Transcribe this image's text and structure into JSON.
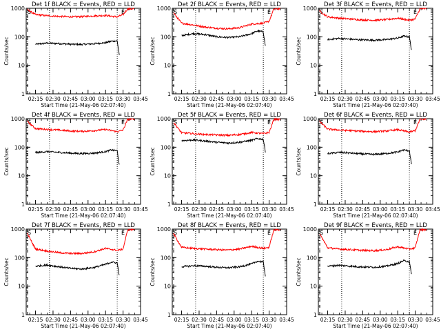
{
  "chart_data": [
    {
      "type": "line",
      "title": "Det 1f BLACK = Events, RED = LLD",
      "xlabel": "Start Time (21-May-06 02:07:40)",
      "ylabel": "Counts/sec",
      "yscale": "log",
      "ylim": [
        1,
        1000
      ],
      "xlim": [
        "02:07",
        "03:45"
      ],
      "x_tick_labels": [
        "02:15",
        "02:30",
        "02:45",
        "03:00",
        "03:15",
        "03:30",
        "03:45"
      ],
      "y_tick_labels": [
        "1",
        "10",
        "100",
        "1000"
      ],
      "flags": [
        "S",
        "E"
      ],
      "dotted_lines": [
        "02:27",
        "03:25"
      ],
      "series": [
        {
          "name": "Events",
          "color": "#000000",
          "x": [
            "02:15",
            "02:25",
            "02:35",
            "02:45",
            "02:55",
            "03:05",
            "03:15",
            "03:20",
            "03:25",
            "03:27"
          ],
          "values": [
            55,
            60,
            58,
            55,
            54,
            57,
            62,
            70,
            72,
            20
          ]
        },
        {
          "name": "LLD",
          "color": "#ff0000",
          "x": [
            "02:08",
            "02:15",
            "02:25",
            "02:35",
            "02:45",
            "02:55",
            "03:05",
            "03:15",
            "03:25",
            "03:30",
            "03:34",
            "03:38",
            "03:40"
          ],
          "values": [
            900,
            600,
            550,
            520,
            500,
            510,
            540,
            560,
            500,
            600,
            950,
            950,
            1000
          ]
        }
      ]
    },
    {
      "type": "line",
      "title": "Det 2f BLACK = Events, RED = LLD",
      "xlabel": "Start Time (21-May-06 02:07:40)",
      "ylabel": "Counts/sec",
      "yscale": "log",
      "ylim": [
        1,
        1000
      ],
      "xlim": [
        "02:07",
        "03:45"
      ],
      "x_tick_labels": [
        "02:15",
        "02:30",
        "02:45",
        "03:00",
        "03:15",
        "03:30",
        "03:45"
      ],
      "y_tick_labels": [
        "1",
        "10",
        "100",
        "1000"
      ],
      "flags": [
        "S",
        "E"
      ],
      "dotted_lines": [
        "02:27",
        "03:25"
      ],
      "series": [
        {
          "name": "Events",
          "color": "#000000",
          "x": [
            "02:15",
            "02:25",
            "02:35",
            "02:45",
            "02:55",
            "03:05",
            "03:15",
            "03:20",
            "03:25",
            "03:27"
          ],
          "values": [
            110,
            130,
            120,
            100,
            95,
            100,
            130,
            160,
            150,
            40
          ]
        },
        {
          "name": "LLD",
          "color": "#ff0000",
          "x": [
            "02:08",
            "02:15",
            "02:25",
            "02:35",
            "02:45",
            "02:55",
            "03:05",
            "03:15",
            "03:25",
            "03:30",
            "03:34",
            "03:38",
            "03:40"
          ],
          "values": [
            700,
            300,
            260,
            220,
            200,
            190,
            210,
            280,
            300,
            350,
            950,
            950,
            1000
          ]
        }
      ]
    },
    {
      "type": "line",
      "title": "Det 3f BLACK = Events, RED = LLD",
      "xlabel": "Start Time (21-May-06 02:07:40)",
      "ylabel": "Counts/sec",
      "yscale": "log",
      "ylim": [
        1,
        1000
      ],
      "xlim": [
        "02:07",
        "03:45"
      ],
      "x_tick_labels": [
        "02:15",
        "02:30",
        "02:45",
        "03:00",
        "03:15",
        "03:30",
        "03:45"
      ],
      "y_tick_labels": [
        "1",
        "10",
        "100",
        "1000"
      ],
      "flags": [
        "S",
        "E"
      ],
      "dotted_lines": [
        "02:27",
        "03:25"
      ],
      "series": [
        {
          "name": "Events",
          "color": "#000000",
          "x": [
            "02:15",
            "02:25",
            "02:35",
            "02:45",
            "02:55",
            "03:05",
            "03:15",
            "03:20",
            "03:25",
            "03:27"
          ],
          "values": [
            80,
            88,
            82,
            78,
            76,
            80,
            90,
            105,
            100,
            30
          ]
        },
        {
          "name": "LLD",
          "color": "#ff0000",
          "x": [
            "02:08",
            "02:15",
            "02:25",
            "02:35",
            "02:45",
            "02:55",
            "03:05",
            "03:15",
            "03:25",
            "03:30",
            "03:34",
            "03:38",
            "03:40"
          ],
          "values": [
            800,
            500,
            450,
            420,
            390,
            380,
            400,
            450,
            380,
            420,
            950,
            950,
            1000
          ]
        }
      ]
    },
    {
      "type": "line",
      "title": "Det 4f BLACK = Events, RED = LLD",
      "xlabel": "Start Time (21-May-06 02:07:40)",
      "ylabel": "Counts/sec",
      "yscale": "log",
      "ylim": [
        1,
        1000
      ],
      "xlim": [
        "02:07",
        "03:45"
      ],
      "x_tick_labels": [
        "02:15",
        "02:30",
        "02:45",
        "03:00",
        "03:15",
        "03:30",
        "03:45"
      ],
      "y_tick_labels": [
        "1",
        "10",
        "100",
        "1000"
      ],
      "flags": [
        "S",
        "E"
      ],
      "dotted_lines": [
        "02:27",
        "03:25"
      ],
      "series": [
        {
          "name": "Events",
          "color": "#000000",
          "x": [
            "02:15",
            "02:25",
            "02:35",
            "02:45",
            "02:55",
            "03:05",
            "03:15",
            "03:20",
            "03:25",
            "03:27"
          ],
          "values": [
            65,
            70,
            66,
            62,
            60,
            62,
            70,
            80,
            75,
            20
          ]
        },
        {
          "name": "LLD",
          "color": "#ff0000",
          "x": [
            "02:08",
            "02:15",
            "02:25",
            "02:35",
            "02:45",
            "02:55",
            "03:05",
            "03:15",
            "03:25",
            "03:30",
            "03:34",
            "03:38",
            "03:40"
          ],
          "values": [
            800,
            450,
            420,
            400,
            370,
            360,
            380,
            420,
            350,
            400,
            950,
            950,
            1000
          ]
        }
      ]
    },
    {
      "type": "line",
      "title": "Det 5f BLACK = Events, RED = LLD",
      "xlabel": "Start Time (21-May-06 02:07:40)",
      "ylabel": "Counts/sec",
      "yscale": "log",
      "ylim": [
        1,
        1000
      ],
      "xlim": [
        "02:07",
        "03:45"
      ],
      "x_tick_labels": [
        "02:15",
        "02:30",
        "02:45",
        "03:00",
        "03:15",
        "03:30",
        "03:45"
      ],
      "y_tick_labels": [
        "1",
        "10",
        "100",
        "1000"
      ],
      "flags": [
        "S",
        "E"
      ],
      "dotted_lines": [
        "02:27",
        "03:25"
      ],
      "series": [
        {
          "name": "Events",
          "color": "#000000",
          "x": [
            "02:15",
            "02:25",
            "02:35",
            "02:45",
            "02:55",
            "03:05",
            "03:15",
            "03:20",
            "03:25",
            "03:27"
          ],
          "values": [
            170,
            180,
            165,
            150,
            140,
            150,
            175,
            200,
            190,
            60
          ]
        },
        {
          "name": "LLD",
          "color": "#ff0000",
          "x": [
            "02:08",
            "02:15",
            "02:25",
            "02:35",
            "02:45",
            "02:55",
            "03:05",
            "03:15",
            "03:25",
            "03:30",
            "03:34",
            "03:38",
            "03:40"
          ],
          "values": [
            750,
            320,
            300,
            280,
            270,
            260,
            280,
            330,
            300,
            330,
            950,
            950,
            1000
          ]
        }
      ]
    },
    {
      "type": "line",
      "title": "Det 6f BLACK = Events, RED = LLD",
      "xlabel": "Start Time (21-May-06 02:07:40)",
      "ylabel": "Counts/sec",
      "yscale": "log",
      "ylim": [
        1,
        1000
      ],
      "xlim": [
        "02:07",
        "03:45"
      ],
      "x_tick_labels": [
        "02:15",
        "02:30",
        "02:45",
        "03:00",
        "03:15",
        "03:30",
        "03:45"
      ],
      "y_tick_labels": [
        "1",
        "10",
        "100",
        "1000"
      ],
      "flags": [
        "S",
        "E"
      ],
      "dotted_lines": [
        "02:27",
        "03:25"
      ],
      "series": [
        {
          "name": "Events",
          "color": "#000000",
          "x": [
            "02:15",
            "02:25",
            "02:35",
            "02:45",
            "02:55",
            "03:05",
            "03:15",
            "03:20",
            "03:25",
            "03:27"
          ],
          "values": [
            60,
            66,
            62,
            58,
            56,
            60,
            68,
            80,
            75,
            22
          ]
        },
        {
          "name": "LLD",
          "color": "#ff0000",
          "x": [
            "02:08",
            "02:15",
            "02:25",
            "02:35",
            "02:45",
            "02:55",
            "03:05",
            "03:15",
            "03:25",
            "03:30",
            "03:34",
            "03:38",
            "03:40"
          ],
          "values": [
            800,
            430,
            400,
            380,
            360,
            350,
            370,
            410,
            340,
            380,
            950,
            950,
            1000
          ]
        }
      ]
    },
    {
      "type": "line",
      "title": "Det 7f BLACK = Events, RED = LLD",
      "xlabel": "Start Time (21-May-06 02:07:40)",
      "ylabel": "Counts/sec",
      "yscale": "log",
      "ylim": [
        1,
        1000
      ],
      "xlim": [
        "02:07",
        "03:45"
      ],
      "x_tick_labels": [
        "02:15",
        "02:30",
        "02:45",
        "03:00",
        "03:15",
        "03:30",
        "03:45"
      ],
      "y_tick_labels": [
        "1",
        "10",
        "100",
        "1000"
      ],
      "flags": [
        "S",
        "E"
      ],
      "dotted_lines": [
        "02:27",
        "03:25"
      ],
      "series": [
        {
          "name": "Events",
          "color": "#000000",
          "x": [
            "02:15",
            "02:25",
            "02:35",
            "02:45",
            "02:55",
            "03:05",
            "03:15",
            "03:20",
            "03:25",
            "03:27"
          ],
          "values": [
            50,
            55,
            48,
            42,
            40,
            45,
            58,
            70,
            65,
            20
          ]
        },
        {
          "name": "LLD",
          "color": "#ff0000",
          "x": [
            "02:08",
            "02:15",
            "02:25",
            "02:35",
            "02:45",
            "02:55",
            "03:05",
            "03:15",
            "03:25",
            "03:30",
            "03:34",
            "03:38",
            "03:40"
          ],
          "values": [
            700,
            200,
            170,
            150,
            140,
            140,
            160,
            210,
            180,
            200,
            950,
            950,
            1000
          ]
        }
      ]
    },
    {
      "type": "line",
      "title": "Det 8f BLACK = Events, RED = LLD",
      "xlabel": "Start Time (21-May-06 02:07:40)",
      "ylabel": "Counts/sec",
      "yscale": "log",
      "ylim": [
        1,
        1000
      ],
      "xlim": [
        "02:07",
        "03:45"
      ],
      "x_tick_labels": [
        "02:15",
        "02:30",
        "02:45",
        "03:00",
        "03:15",
        "03:30",
        "03:45"
      ],
      "y_tick_labels": [
        "1",
        "10",
        "100",
        "1000"
      ],
      "flags": [
        "S",
        "E"
      ],
      "dotted_lines": [
        "02:27",
        "03:25"
      ],
      "series": [
        {
          "name": "Events",
          "color": "#000000",
          "x": [
            "02:15",
            "02:25",
            "02:35",
            "02:45",
            "02:55",
            "03:05",
            "03:15",
            "03:20",
            "03:25",
            "03:27"
          ],
          "values": [
            48,
            52,
            50,
            46,
            44,
            48,
            60,
            75,
            70,
            20
          ]
        },
        {
          "name": "LLD",
          "color": "#ff0000",
          "x": [
            "02:08",
            "02:15",
            "02:25",
            "02:35",
            "02:45",
            "02:55",
            "03:05",
            "03:15",
            "03:25",
            "03:30",
            "03:34",
            "03:38",
            "03:40"
          ],
          "values": [
            700,
            230,
            210,
            200,
            190,
            185,
            200,
            250,
            210,
            230,
            950,
            950,
            1000
          ]
        }
      ]
    },
    {
      "type": "line",
      "title": "Det 9f BLACK = Events, RED = LLD",
      "xlabel": "Start Time (21-May-06 02:07:40)",
      "ylabel": "Counts/sec",
      "yscale": "log",
      "ylim": [
        1,
        1000
      ],
      "xlim": [
        "02:07",
        "03:45"
      ],
      "x_tick_labels": [
        "02:15",
        "02:30",
        "02:45",
        "03:00",
        "03:15",
        "03:30",
        "03:45"
      ],
      "y_tick_labels": [
        "1",
        "10",
        "100",
        "1000"
      ],
      "flags": [
        "S",
        "E"
      ],
      "dotted_lines": [
        "02:27",
        "03:25"
      ],
      "series": [
        {
          "name": "Events",
          "color": "#000000",
          "x": [
            "02:15",
            "02:25",
            "02:35",
            "02:45",
            "02:55",
            "03:05",
            "03:15",
            "03:20",
            "03:25",
            "03:27"
          ],
          "values": [
            50,
            54,
            50,
            47,
            46,
            50,
            62,
            78,
            72,
            22
          ]
        },
        {
          "name": "LLD",
          "color": "#ff0000",
          "x": [
            "02:08",
            "02:15",
            "02:25",
            "02:35",
            "02:45",
            "02:55",
            "03:05",
            "03:15",
            "03:25",
            "03:30",
            "03:34",
            "03:38",
            "03:40"
          ],
          "values": [
            700,
            220,
            200,
            190,
            180,
            175,
            190,
            240,
            200,
            220,
            950,
            950,
            1000
          ]
        }
      ]
    }
  ]
}
